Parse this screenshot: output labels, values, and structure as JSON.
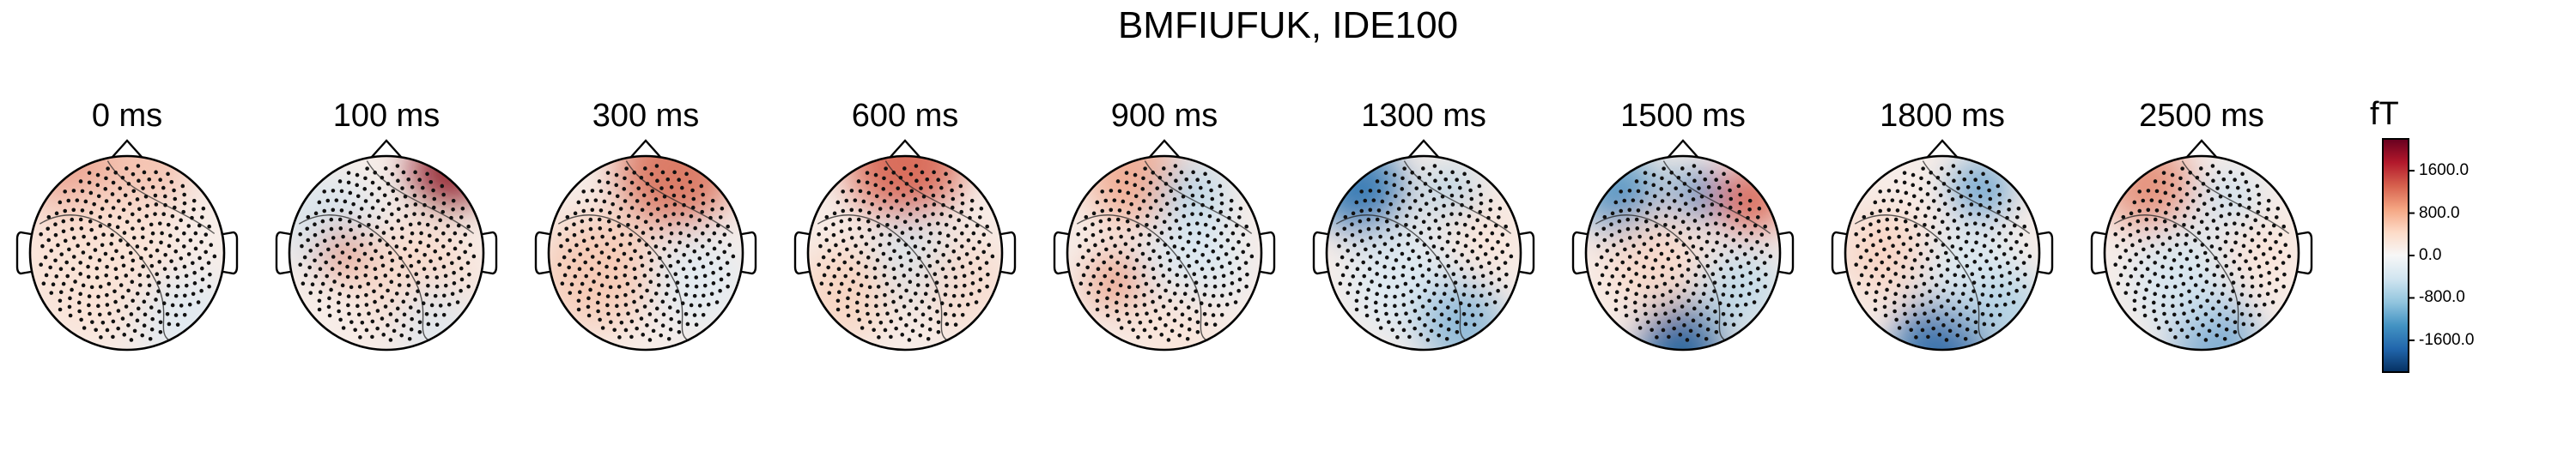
{
  "title": "BMFIUFUK, IDE100",
  "colorbar": {
    "unit": "fT",
    "ticks": [
      "1600.0",
      "800.0",
      "0.0",
      "-800.0",
      "-1600.0"
    ],
    "tick_values": [
      1600,
      800,
      0,
      -800,
      -1600
    ],
    "range": [
      -2200,
      2200
    ],
    "colors": [
      "#053061",
      "#2166ac",
      "#4393c3",
      "#92c5de",
      "#d1e5f0",
      "#f7f7f7",
      "#fddbc7",
      "#f4a582",
      "#d6604d",
      "#b2182b",
      "#67001f"
    ]
  },
  "topomaps": [
    {
      "label": "0 ms",
      "time_ms": 0
    },
    {
      "label": "100 ms",
      "time_ms": 100
    },
    {
      "label": "300 ms",
      "time_ms": 300
    },
    {
      "label": "600 ms",
      "time_ms": 600
    },
    {
      "label": "900 ms",
      "time_ms": 900
    },
    {
      "label": "1300 ms",
      "time_ms": 1300
    },
    {
      "label": "1500 ms",
      "time_ms": 1500
    },
    {
      "label": "1800 ms",
      "time_ms": 1800
    },
    {
      "label": "2500 ms",
      "time_ms": 2500
    }
  ]
}
